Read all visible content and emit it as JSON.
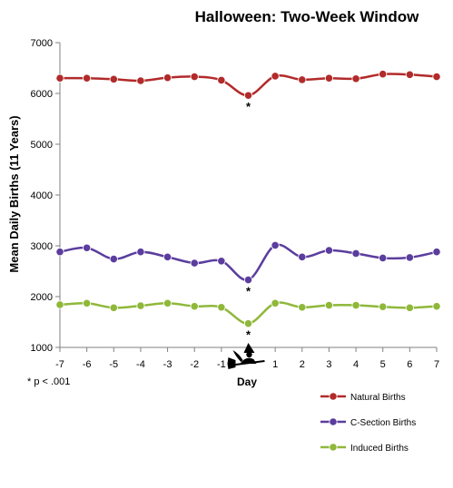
{
  "chart_data": {
    "type": "line",
    "title": "Halloween: Two-Week Window",
    "xlabel": "Day",
    "ylabel": "Mean Daily Births (11 Years)",
    "x": [
      -7,
      -6,
      -5,
      -4,
      -3,
      -2,
      -1,
      0,
      1,
      2,
      3,
      4,
      5,
      6,
      7
    ],
    "x_tick_labels": [
      "-7",
      "-6",
      "-5",
      "-4",
      "-3",
      "-2",
      "-1",
      "1",
      "2",
      "3",
      "4",
      "5",
      "6",
      "7"
    ],
    "y_ticks": [
      1000,
      2000,
      3000,
      4000,
      5000,
      6000,
      7000
    ],
    "ylim": [
      1000,
      7000
    ],
    "xlim": [
      -7,
      7
    ],
    "grid": false,
    "legend_position": "bottom-right",
    "series": [
      {
        "name": "Natural Births",
        "color": "#B22A2A",
        "values": [
          6300,
          6300,
          6280,
          6250,
          6310,
          6330,
          6260,
          5960,
          6340,
          6270,
          6300,
          6290,
          6380,
          6370,
          6330
        ]
      },
      {
        "name": "C-Section Births",
        "color": "#5B3D9E",
        "values": [
          2880,
          2960,
          2740,
          2880,
          2780,
          2660,
          2700,
          2330,
          3010,
          2780,
          2910,
          2850,
          2760,
          2770,
          2880
        ]
      },
      {
        "name": "Induced Births",
        "color": "#8FB83A",
        "values": [
          1840,
          1870,
          1780,
          1820,
          1870,
          1810,
          1790,
          1470,
          1870,
          1790,
          1830,
          1830,
          1800,
          1780,
          1810
        ]
      }
    ],
    "annotations": [
      {
        "x": 0,
        "text": "*",
        "series": "Natural Births"
      },
      {
        "x": 0,
        "text": "*",
        "series": "C-Section Births"
      },
      {
        "x": 0,
        "text": "*",
        "series": "Induced Births"
      }
    ],
    "footnote": "* p < .001",
    "halloween_marker_icon": "witch-on-broom-icon"
  }
}
